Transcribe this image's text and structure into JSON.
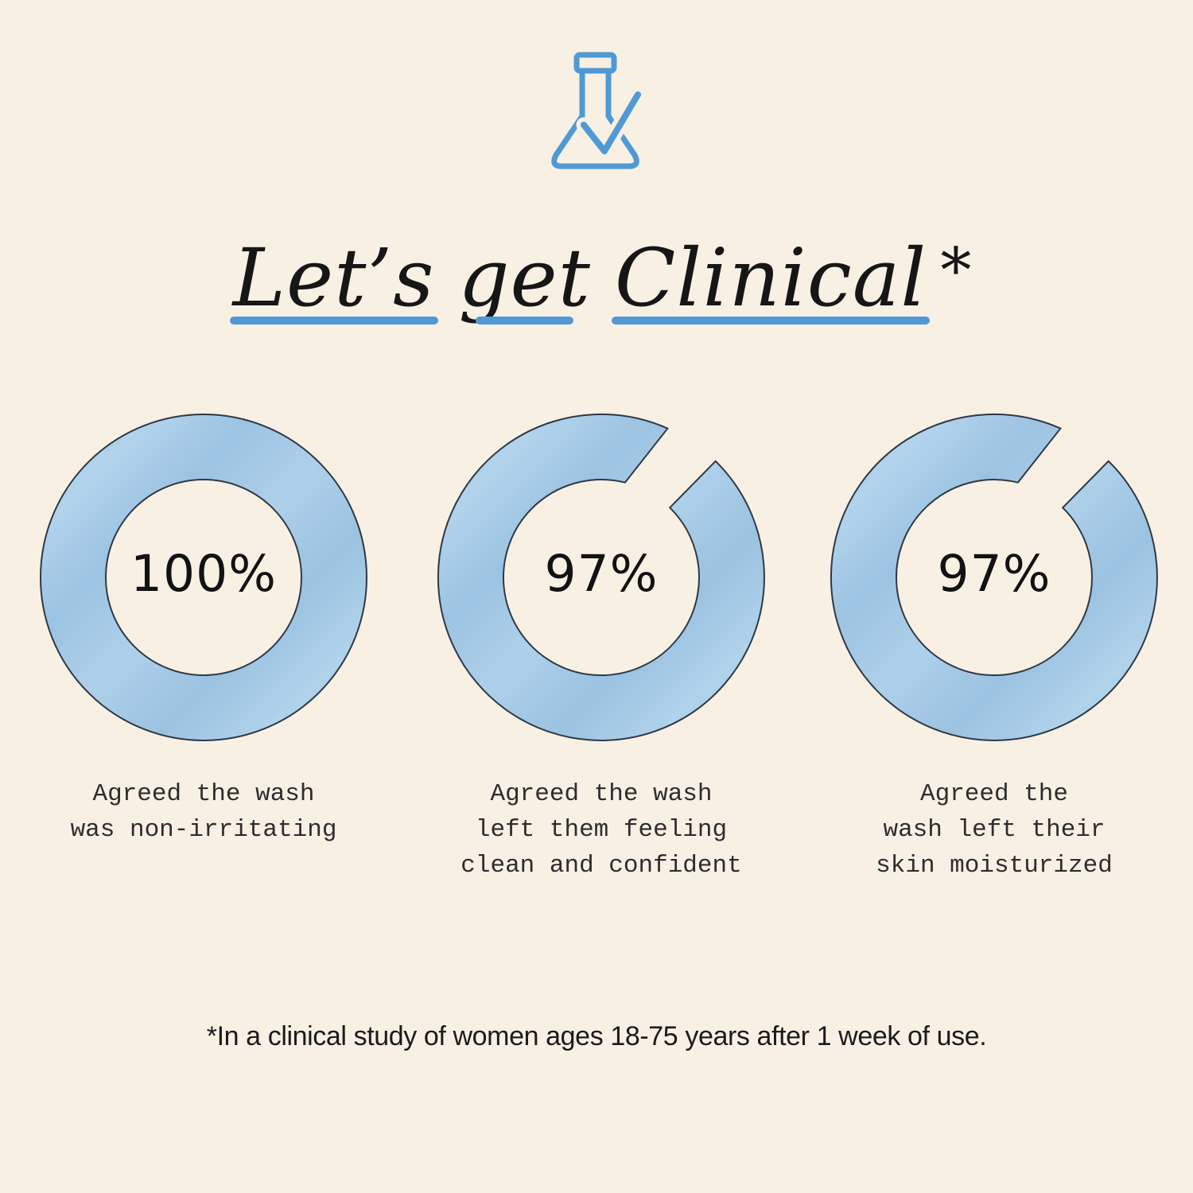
{
  "colors": {
    "background": "#f9f0e4",
    "accent_blue": "#4f9ad5",
    "ring_blue_base": "#a6cae7",
    "ring_outline": "#2e3945",
    "title_text": "#161616",
    "body_text": "#2d2d2d"
  },
  "header": {
    "icon": "flask-with-checkmark",
    "title_words": [
      "Let’s",
      "get",
      "Clinical"
    ],
    "title_suffix": "*"
  },
  "chart_data": {
    "type": "pie",
    "subtype": "donut-progress",
    "title": "Let’s get Clinical*",
    "unit": "%",
    "legend_position": "below-each-donut",
    "series": [
      {
        "value": 100,
        "label": "100%",
        "caption": "Agreed the wash\nwas non-irritating"
      },
      {
        "value": 97,
        "label": "97%",
        "caption": "Agreed the wash\nleft them feeling\nclean and confident"
      },
      {
        "value": 97,
        "label": "97%",
        "caption": "Agreed the\nwash left their\nskin moisturized"
      }
    ],
    "footnote": "*In a clinical study of women ages 18-75 years after 1 week of use.",
    "style": {
      "outline_color": "#2e3945",
      "texture_stops": [
        "#9fc6e4",
        "#b2d3ec",
        "#9cc3e2",
        "#aed0ea",
        "#9bc2e1",
        "#b0d2eb",
        "#a3c8e6"
      ],
      "gap": {
        "outer_start_deg": 66,
        "inner_start_deg": 76,
        "end_deg": 45.5
      }
    }
  }
}
